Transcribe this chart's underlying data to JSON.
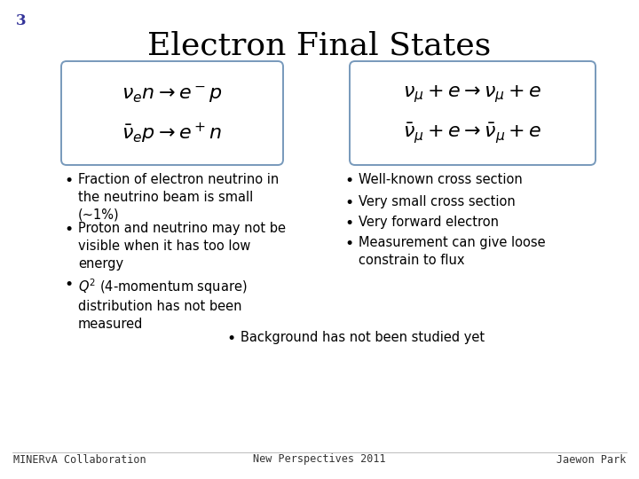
{
  "slide_number": "3",
  "title": "Electron Final States",
  "box1_equations": [
    "$\\nu_e n \\rightarrow e^- p$",
    "$\\bar{\\nu}_e p \\rightarrow e^+ n$"
  ],
  "box2_equations": [
    "$\\nu_\\mu + e \\rightarrow \\nu_\\mu + e$",
    "$\\bar{\\nu}_\\mu + e \\rightarrow \\bar{\\nu}_\\mu + e$"
  ],
  "left_bullets": [
    "Fraction of electron neutrino in\nthe neutrino beam is small\n(~1%)",
    "Proton and neutrino may not be\nvisible when it has too low\nenergy",
    "$Q^2$ (4-momentum square)\ndistribution has not been\nmeasured"
  ],
  "right_bullets": [
    "Well-known cross section",
    "Very small cross section",
    "Very forward electron",
    "Measurement can give loose\nconstrain to flux"
  ],
  "center_bullet": "Background has not been studied yet",
  "footer_left": "MINERvA Collaboration",
  "footer_center": "New Perspectives 2011",
  "footer_right": "Jaewon Park",
  "background_color": "#ffffff",
  "text_color": "#000000",
  "box_border_color": "#7799bb",
  "slide_number_color": "#333399",
  "title_fontsize": 26,
  "bullet_fontsize": 10.5,
  "equation_fontsize": 14,
  "footer_fontsize": 8.5
}
